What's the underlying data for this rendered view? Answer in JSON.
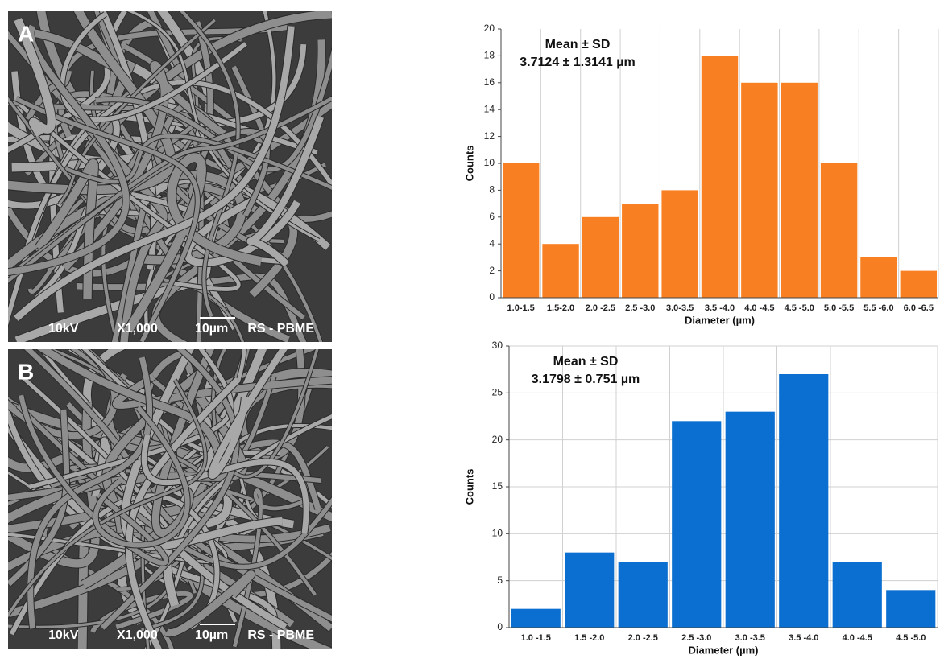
{
  "images": [
    {
      "label": "A",
      "info": [
        "10kV",
        "X1,000",
        "10µm",
        "RS - PBME"
      ]
    },
    {
      "label": "B",
      "info": [
        "10kV",
        "X1,000",
        "10µm",
        "RS - PBME"
      ]
    }
  ],
  "chart_data": [
    {
      "type": "bar",
      "annotations": [
        "Mean ± SD",
        "3.7124 ± 1.3141 µm"
      ],
      "x_label": "Diameter (µm)",
      "y_label": "Counts",
      "categories": [
        "1.0-1.5",
        "1.5-2.0",
        "2.0 -2.5",
        "2.5 -3.0",
        "3.0-3.5",
        "3.5 -4.0",
        "4.0 -4.5",
        "4.5 -5.0",
        "5.0 -5.5",
        "5.5 -6.0",
        "6.0 -6.5"
      ],
      "values": [
        10,
        4,
        6,
        7,
        8,
        18,
        16,
        16,
        10,
        3,
        2
      ],
      "color": "#f98022",
      "ylim": [
        0,
        20
      ],
      "yticks": [
        0,
        2,
        4,
        6,
        8,
        10,
        12,
        14,
        16,
        18,
        20
      ],
      "grid": [
        "x"
      ]
    },
    {
      "type": "bar",
      "annotations": [
        "Mean ± SD",
        "3.1798 ± 0.751  µm"
      ],
      "x_label": "Diameter (µm)",
      "y_label": "Counts",
      "categories": [
        "1.0 -1.5",
        "1.5 -2.0",
        "2.0 -2.5",
        "2.5 -3.0",
        "3.0 -3.5",
        "3.5 -4.0",
        "4.0 -4.5",
        "4.5 -5.0"
      ],
      "values": [
        2,
        8,
        7,
        22,
        23,
        27,
        7,
        4
      ],
      "color": "#0b6fd1",
      "ylim": [
        0,
        30
      ],
      "yticks": [
        0,
        5,
        10,
        15,
        20,
        25,
        30
      ],
      "grid": [
        "x",
        "y"
      ]
    }
  ]
}
